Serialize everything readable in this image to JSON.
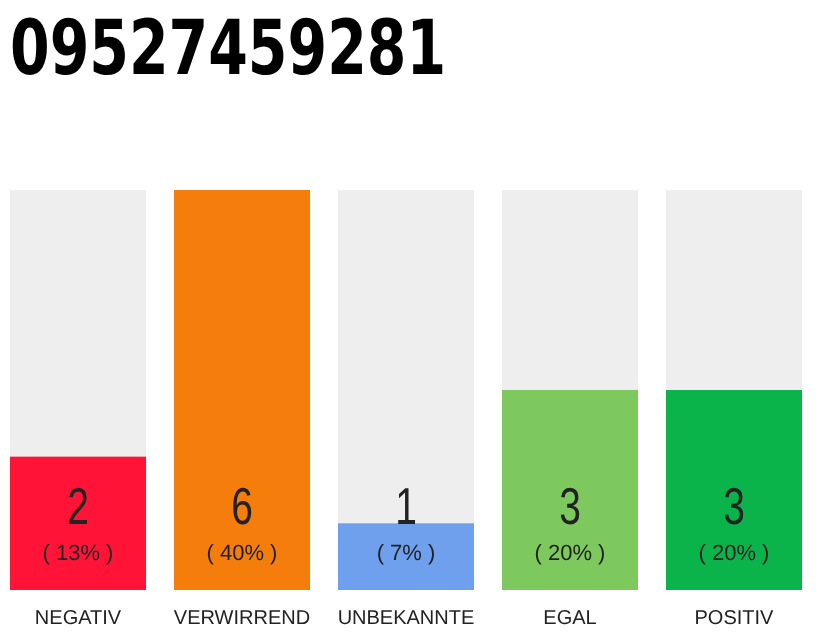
{
  "chart_data": {
    "type": "bar",
    "title": "09527459281",
    "categories": [
      "NEGATIV",
      "VERWIRREND",
      "UNBEKANNTE",
      "EGAL",
      "POSITIV"
    ],
    "values": [
      2,
      6,
      1,
      3,
      3
    ],
    "colors": [
      "#ff1438",
      "#f47d0c",
      "#6ea0ee",
      "#7dc95e",
      "#0bb34b"
    ],
    "value_labels": [
      "2 ( 13% )",
      "6 ( 40% )",
      "1 ( 7% )",
      "3 ( 20% )",
      "3 ( 20% )"
    ]
  }
}
